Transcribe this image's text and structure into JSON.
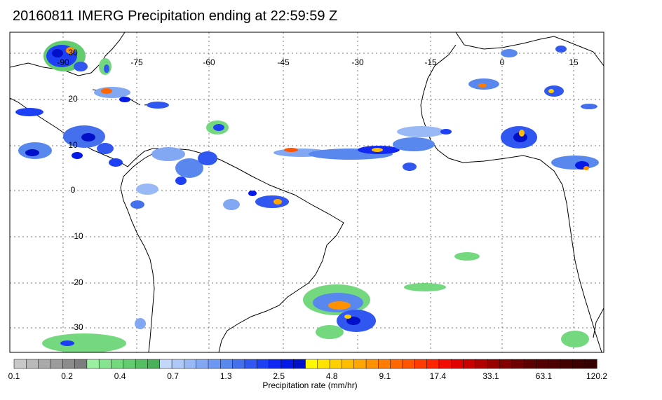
{
  "title": "20160811 IMERG Precipitation ending at 22:59:59 Z",
  "map": {
    "lon_labels": [
      "-90",
      "-75",
      "-60",
      "-45",
      "-30",
      "-15",
      "0",
      "15"
    ],
    "lat_labels": [
      "30",
      "20",
      "10",
      "0",
      "-10",
      "-20",
      "-30"
    ],
    "grid": true,
    "grid_color": "#777777",
    "coast_color": "#000000"
  },
  "colorbar": {
    "title": "Precipitation rate (mm/hr)",
    "tick_labels": [
      "0.1",
      "0.2",
      "0.4",
      "0.7",
      "1.3",
      "2.5",
      "4.8",
      "9.1",
      "17.4",
      "33.1",
      "63.1",
      "120.2"
    ],
    "colors": [
      "#c8c8c8",
      "#b9b9b9",
      "#aaaaaa",
      "#9b9b9b",
      "#8c8c8c",
      "#7d7d7d",
      "#9af0a0",
      "#86e48e",
      "#74d87e",
      "#62cc6e",
      "#55be62",
      "#48b056",
      "#c4d6fa",
      "#aec8f8",
      "#98b8f6",
      "#82a8f4",
      "#6c98f2",
      "#5888ee",
      "#4470ee",
      "#3058f0",
      "#1e40f4",
      "#1028f2",
      "#0418e6",
      "#0010c8",
      "#fff800",
      "#ffe400",
      "#ffd000",
      "#ffbc00",
      "#ffa600",
      "#ff9000",
      "#ff7c00",
      "#ff6800",
      "#ff5400",
      "#ff3c00",
      "#ff2400",
      "#f40c00",
      "#e00000",
      "#c80000",
      "#b00000",
      "#980000",
      "#820000",
      "#6e0000",
      "#5c0000",
      "#540000",
      "#4c0000",
      "#440000",
      "#3c0000",
      "#340000"
    ]
  }
}
